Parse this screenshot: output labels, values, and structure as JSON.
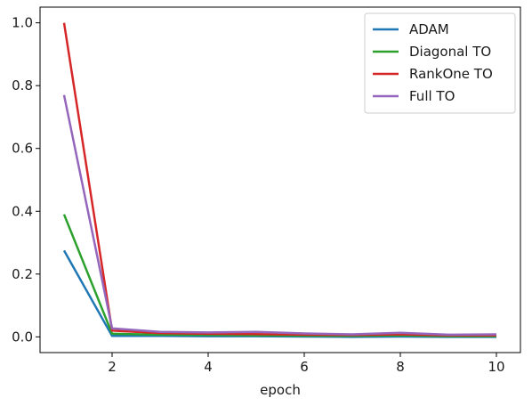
{
  "chart_data": {
    "type": "line",
    "title": "",
    "xlabel": "epoch",
    "ylabel": "",
    "xlim": [
      0.5,
      10.5
    ],
    "ylim": [
      -0.05,
      1.05
    ],
    "xticks": [
      2,
      4,
      6,
      8,
      10
    ],
    "yticks": [
      0.0,
      0.2,
      0.4,
      0.6,
      0.8,
      1.0
    ],
    "xtick_labels": [
      "2",
      "4",
      "6",
      "8",
      "10"
    ],
    "ytick_labels": [
      "0.0",
      "0.2",
      "0.4",
      "0.6",
      "0.8",
      "1.0"
    ],
    "legend_position": "top-right",
    "grid": false,
    "x": [
      1,
      2,
      3,
      4,
      5,
      6,
      7,
      8,
      9,
      10
    ],
    "series": [
      {
        "name": "ADAM",
        "color": "#1f77b4",
        "values": [
          0.275,
          0.003,
          0.003,
          0.002,
          0.002,
          0.001,
          0.0,
          0.001,
          0.0,
          0.0
        ]
      },
      {
        "name": "Diagonal TO",
        "color": "#2ca02c",
        "values": [
          0.39,
          0.01,
          0.007,
          0.006,
          0.005,
          0.004,
          0.003,
          0.005,
          0.002,
          0.002
        ]
      },
      {
        "name": "RankOne TO",
        "color": "#d62728",
        "values": [
          1.0,
          0.02,
          0.012,
          0.01,
          0.009,
          0.007,
          0.006,
          0.008,
          0.005,
          0.005
        ]
      },
      {
        "name": "Full TO",
        "color": "#9467bd",
        "values": [
          0.77,
          0.027,
          0.016,
          0.014,
          0.016,
          0.011,
          0.008,
          0.013,
          0.007,
          0.008
        ]
      }
    ]
  }
}
